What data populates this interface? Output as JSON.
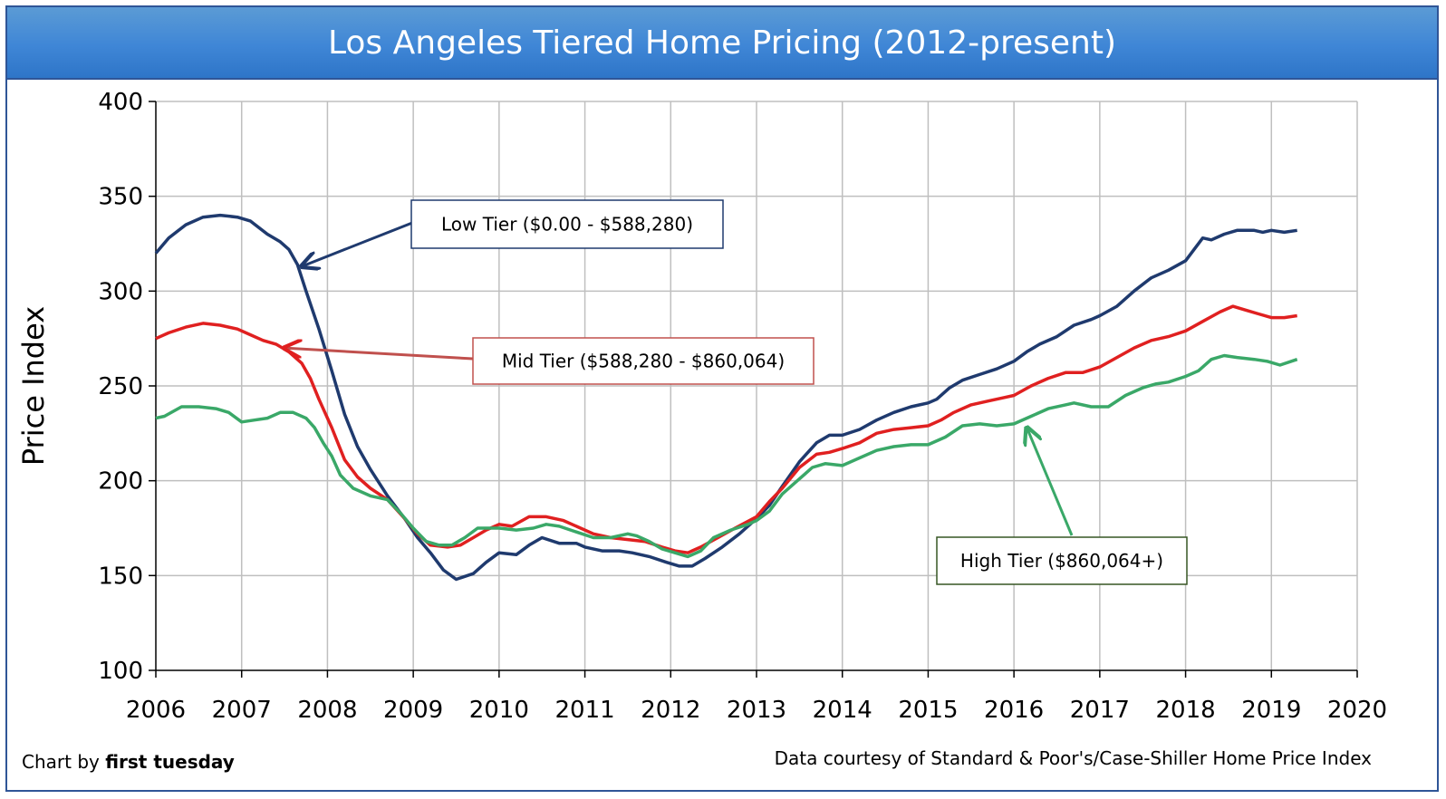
{
  "chart_data": {
    "type": "line",
    "title": "Los Angeles Tiered Home Pricing (2012-present)",
    "ylabel": "Price Index",
    "xlabel": "",
    "xlim": [
      2006,
      2020
    ],
    "ylim": [
      100,
      400
    ],
    "x_ticks": [
      "2006",
      "2007",
      "2008",
      "2009",
      "2010",
      "2011",
      "2012",
      "2013",
      "2014",
      "2015",
      "2016",
      "2017",
      "2018",
      "2019",
      "2020"
    ],
    "y_ticks": [
      "100",
      "150",
      "200",
      "250",
      "300",
      "350",
      "400"
    ],
    "grid": true,
    "series": [
      {
        "name": "Low Tier ($0.00 - $588,280)",
        "color": "#1f3a6e",
        "points": [
          [
            2006.0,
            320
          ],
          [
            2006.15,
            328
          ],
          [
            2006.35,
            335
          ],
          [
            2006.55,
            339
          ],
          [
            2006.75,
            340
          ],
          [
            2006.95,
            339
          ],
          [
            2007.1,
            337
          ],
          [
            2007.3,
            330
          ],
          [
            2007.45,
            326
          ],
          [
            2007.55,
            322
          ],
          [
            2007.65,
            314
          ],
          [
            2007.75,
            300
          ],
          [
            2007.9,
            280
          ],
          [
            2008.05,
            258
          ],
          [
            2008.2,
            235
          ],
          [
            2008.35,
            218
          ],
          [
            2008.5,
            206
          ],
          [
            2008.7,
            192
          ],
          [
            2008.9,
            180
          ],
          [
            2009.05,
            170
          ],
          [
            2009.2,
            162
          ],
          [
            2009.35,
            153
          ],
          [
            2009.5,
            148
          ],
          [
            2009.7,
            151
          ],
          [
            2009.85,
            157
          ],
          [
            2010.0,
            162
          ],
          [
            2010.2,
            161
          ],
          [
            2010.35,
            166
          ],
          [
            2010.5,
            170
          ],
          [
            2010.7,
            167
          ],
          [
            2010.9,
            167
          ],
          [
            2011.0,
            165
          ],
          [
            2011.2,
            163
          ],
          [
            2011.4,
            163
          ],
          [
            2011.55,
            162
          ],
          [
            2011.75,
            160
          ],
          [
            2011.95,
            157
          ],
          [
            2012.1,
            155
          ],
          [
            2012.25,
            155
          ],
          [
            2012.4,
            159
          ],
          [
            2012.6,
            165
          ],
          [
            2012.8,
            172
          ],
          [
            2013.0,
            180
          ],
          [
            2013.15,
            187
          ],
          [
            2013.3,
            197
          ],
          [
            2013.5,
            210
          ],
          [
            2013.7,
            220
          ],
          [
            2013.85,
            224
          ],
          [
            2014.0,
            224
          ],
          [
            2014.2,
            227
          ],
          [
            2014.4,
            232
          ],
          [
            2014.6,
            236
          ],
          [
            2014.8,
            239
          ],
          [
            2015.0,
            241
          ],
          [
            2015.1,
            243
          ],
          [
            2015.25,
            249
          ],
          [
            2015.4,
            253
          ],
          [
            2015.6,
            256
          ],
          [
            2015.8,
            259
          ],
          [
            2016.0,
            263
          ],
          [
            2016.15,
            268
          ],
          [
            2016.3,
            272
          ],
          [
            2016.5,
            276
          ],
          [
            2016.7,
            282
          ],
          [
            2016.9,
            285
          ],
          [
            2017.0,
            287
          ],
          [
            2017.2,
            292
          ],
          [
            2017.4,
            300
          ],
          [
            2017.6,
            307
          ],
          [
            2017.8,
            311
          ],
          [
            2018.0,
            316
          ],
          [
            2018.1,
            322
          ],
          [
            2018.2,
            328
          ],
          [
            2018.3,
            327
          ],
          [
            2018.45,
            330
          ],
          [
            2018.6,
            332
          ],
          [
            2018.8,
            332
          ],
          [
            2018.9,
            331
          ],
          [
            2019.0,
            332
          ],
          [
            2019.15,
            331
          ],
          [
            2019.3,
            332
          ]
        ]
      },
      {
        "name": "Mid Tier ($588,280 - $860,064)",
        "color": "#e02020",
        "points": [
          [
            2006.0,
            275
          ],
          [
            2006.15,
            278
          ],
          [
            2006.35,
            281
          ],
          [
            2006.55,
            283
          ],
          [
            2006.75,
            282
          ],
          [
            2006.95,
            280
          ],
          [
            2007.1,
            277
          ],
          [
            2007.25,
            274
          ],
          [
            2007.4,
            272
          ],
          [
            2007.55,
            268
          ],
          [
            2007.7,
            262
          ],
          [
            2007.8,
            254
          ],
          [
            2007.9,
            243
          ],
          [
            2008.05,
            228
          ],
          [
            2008.2,
            211
          ],
          [
            2008.35,
            202
          ],
          [
            2008.5,
            196
          ],
          [
            2008.7,
            190
          ],
          [
            2008.9,
            180
          ],
          [
            2009.05,
            172
          ],
          [
            2009.2,
            166
          ],
          [
            2009.4,
            165
          ],
          [
            2009.55,
            166
          ],
          [
            2009.7,
            170
          ],
          [
            2009.85,
            174
          ],
          [
            2010.0,
            177
          ],
          [
            2010.15,
            176
          ],
          [
            2010.35,
            181
          ],
          [
            2010.55,
            181
          ],
          [
            2010.75,
            179
          ],
          [
            2010.95,
            175
          ],
          [
            2011.1,
            172
          ],
          [
            2011.3,
            170
          ],
          [
            2011.5,
            169
          ],
          [
            2011.7,
            168
          ],
          [
            2011.9,
            165
          ],
          [
            2012.05,
            163
          ],
          [
            2012.2,
            162
          ],
          [
            2012.35,
            165
          ],
          [
            2012.55,
            170
          ],
          [
            2012.75,
            175
          ],
          [
            2013.0,
            181
          ],
          [
            2013.15,
            189
          ],
          [
            2013.3,
            196
          ],
          [
            2013.5,
            207
          ],
          [
            2013.7,
            214
          ],
          [
            2013.85,
            215
          ],
          [
            2014.0,
            217
          ],
          [
            2014.2,
            220
          ],
          [
            2014.4,
            225
          ],
          [
            2014.6,
            227
          ],
          [
            2014.8,
            228
          ],
          [
            2015.0,
            229
          ],
          [
            2015.15,
            232
          ],
          [
            2015.3,
            236
          ],
          [
            2015.5,
            240
          ],
          [
            2015.7,
            242
          ],
          [
            2015.9,
            244
          ],
          [
            2016.0,
            245
          ],
          [
            2016.2,
            250
          ],
          [
            2016.4,
            254
          ],
          [
            2016.6,
            257
          ],
          [
            2016.8,
            257
          ],
          [
            2017.0,
            260
          ],
          [
            2017.2,
            265
          ],
          [
            2017.4,
            270
          ],
          [
            2017.6,
            274
          ],
          [
            2017.8,
            276
          ],
          [
            2018.0,
            279
          ],
          [
            2018.2,
            284
          ],
          [
            2018.4,
            289
          ],
          [
            2018.55,
            292
          ],
          [
            2018.7,
            290
          ],
          [
            2018.85,
            288
          ],
          [
            2019.0,
            286
          ],
          [
            2019.15,
            286
          ],
          [
            2019.3,
            287
          ]
        ]
      },
      {
        "name": "High Tier ($860,064+)",
        "color": "#3aa868",
        "points": [
          [
            2006.0,
            233
          ],
          [
            2006.1,
            234
          ],
          [
            2006.3,
            239
          ],
          [
            2006.5,
            239
          ],
          [
            2006.7,
            238
          ],
          [
            2006.85,
            236
          ],
          [
            2007.0,
            231
          ],
          [
            2007.15,
            232
          ],
          [
            2007.3,
            233
          ],
          [
            2007.45,
            236
          ],
          [
            2007.6,
            236
          ],
          [
            2007.75,
            233
          ],
          [
            2007.85,
            228
          ],
          [
            2007.95,
            220
          ],
          [
            2008.05,
            213
          ],
          [
            2008.15,
            203
          ],
          [
            2008.3,
            196
          ],
          [
            2008.5,
            192
          ],
          [
            2008.7,
            190
          ],
          [
            2008.85,
            183
          ],
          [
            2009.0,
            175
          ],
          [
            2009.15,
            168
          ],
          [
            2009.3,
            166
          ],
          [
            2009.45,
            166
          ],
          [
            2009.6,
            170
          ],
          [
            2009.75,
            175
          ],
          [
            2009.9,
            175
          ],
          [
            2010.0,
            175
          ],
          [
            2010.2,
            174
          ],
          [
            2010.4,
            175
          ],
          [
            2010.55,
            177
          ],
          [
            2010.7,
            176
          ],
          [
            2010.9,
            173
          ],
          [
            2011.1,
            170
          ],
          [
            2011.3,
            170
          ],
          [
            2011.5,
            172
          ],
          [
            2011.6,
            171
          ],
          [
            2011.75,
            168
          ],
          [
            2011.9,
            164
          ],
          [
            2012.05,
            162
          ],
          [
            2012.2,
            160
          ],
          [
            2012.35,
            163
          ],
          [
            2012.5,
            170
          ],
          [
            2012.7,
            174
          ],
          [
            2012.9,
            177
          ],
          [
            2013.0,
            179
          ],
          [
            2013.15,
            184
          ],
          [
            2013.3,
            193
          ],
          [
            2013.5,
            201
          ],
          [
            2013.65,
            207
          ],
          [
            2013.8,
            209
          ],
          [
            2014.0,
            208
          ],
          [
            2014.2,
            212
          ],
          [
            2014.4,
            216
          ],
          [
            2014.6,
            218
          ],
          [
            2014.8,
            219
          ],
          [
            2015.0,
            219
          ],
          [
            2015.2,
            223
          ],
          [
            2015.4,
            229
          ],
          [
            2015.6,
            230
          ],
          [
            2015.8,
            229
          ],
          [
            2016.0,
            230
          ],
          [
            2016.2,
            234
          ],
          [
            2016.4,
            238
          ],
          [
            2016.6,
            240
          ],
          [
            2016.7,
            241
          ],
          [
            2016.9,
            239
          ],
          [
            2017.0,
            239
          ],
          [
            2017.1,
            239
          ],
          [
            2017.3,
            245
          ],
          [
            2017.5,
            249
          ],
          [
            2017.65,
            251
          ],
          [
            2017.8,
            252
          ],
          [
            2018.0,
            255
          ],
          [
            2018.15,
            258
          ],
          [
            2018.3,
            264
          ],
          [
            2018.45,
            266
          ],
          [
            2018.6,
            265
          ],
          [
            2018.8,
            264
          ],
          [
            2018.95,
            263
          ],
          [
            2019.1,
            261
          ],
          [
            2019.3,
            264
          ]
        ]
      }
    ],
    "annotations": [
      {
        "text": "Low Tier ($0.00 - $588,280)",
        "target": [
          2007.7,
          313
        ]
      },
      {
        "text": "Mid Tier ($588,280 - $860,064)",
        "target": [
          2007.5,
          270
        ]
      },
      {
        "text": "High Tier ($860,064+)",
        "target": [
          2016.15,
          228
        ]
      }
    ],
    "footer_left_prefix": "Chart by ",
    "footer_left_brand": "first tuesday",
    "footer_right": "Data courtesy of Standard & Poor's/Case-Shiller Home Price Index"
  }
}
